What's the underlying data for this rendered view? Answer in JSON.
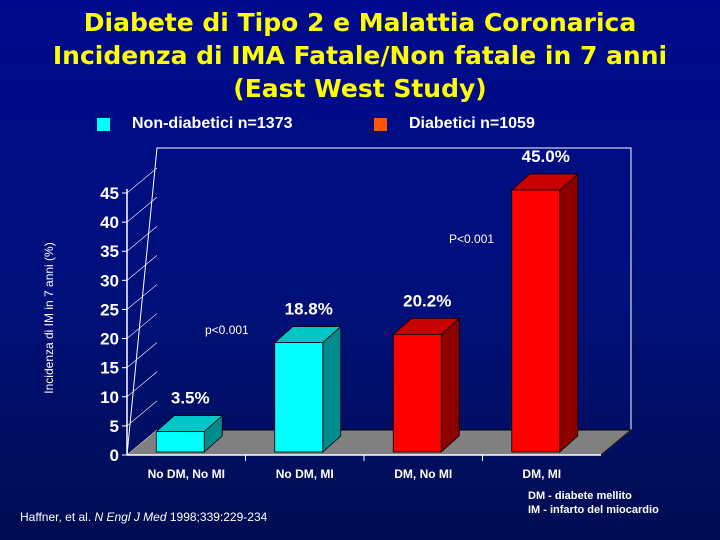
{
  "title_lines": [
    "Diabete di Tipo 2 e Malattia Coronarica",
    "Incidenza di IMA Fatale/Non fatale in 7 anni",
    "(East West Study)"
  ],
  "legend": [
    {
      "label": "Non-diabetici n=1373",
      "color": "#00ffff"
    },
    {
      "label": "Diabetici n=1059",
      "color": "#ff5500"
    }
  ],
  "chart_data": {
    "type": "bar",
    "categories": [
      "No DM, No MI",
      "No DM, MI",
      "DM, No MI",
      "DM, MI"
    ],
    "values": [
      3.5,
      18.8,
      20.2,
      45.0
    ],
    "data_labels": [
      "3.5%",
      "18.8%",
      "20.2%",
      "45.0%"
    ],
    "bar_colors": [
      "#00ffff",
      "#00ffff",
      "#ff0000",
      "#ff0000"
    ],
    "ylabel": "Incidenza di IM in 7 anni (%)",
    "ylim": [
      0,
      45
    ],
    "yticks": [
      0,
      5,
      10,
      15,
      20,
      25,
      30,
      35,
      40,
      45
    ],
    "annotations": [
      "p<0.001",
      "P<0.001"
    ]
  },
  "definitions": [
    "DM - diabete mellito",
    "IM - infarto del miocardio"
  ],
  "citation": {
    "authors": "Haffner, et al. ",
    "journal": "N Engl J Med",
    "details": " 1998;339:229-234"
  }
}
